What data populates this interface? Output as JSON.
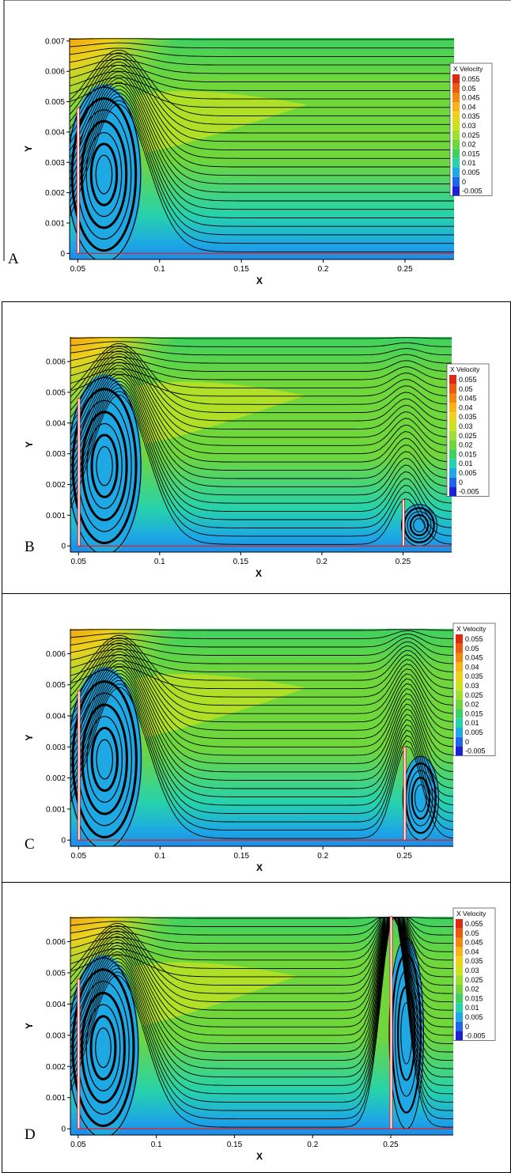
{
  "chart_data": [
    {
      "type": "heatmap",
      "panel_label": "A",
      "xlabel": "X",
      "ylabel": "Y",
      "xlim": [
        0.045,
        0.28
      ],
      "ylim": [
        -0.0002,
        0.0071
      ],
      "x_ticks": [
        "0.05",
        "0.1",
        "0.15",
        "0.2",
        "0.25"
      ],
      "y_ticks": [
        "0",
        "0.001",
        "0.002",
        "0.003",
        "0.004",
        "0.005",
        "0.006",
        "0.007"
      ],
      "obstacles": [
        {
          "x": 0.05,
          "height": 0.0048
        }
      ],
      "legend": {
        "title": "X Velocity",
        "levels": [
          "0.055",
          "0.05",
          "0.045",
          "0.04",
          "0.035",
          "0.03",
          "0.025",
          "0.02",
          "0.015",
          "0.01",
          "0.005",
          "0",
          "-0.005"
        ],
        "colors": [
          "#dd2a10",
          "#ea5a0f",
          "#f2890e",
          "#f7b418",
          "#ecd21c",
          "#cbe21e",
          "#9ee030",
          "#6fd63c",
          "#3fd160",
          "#26d2ac",
          "#1ea8e4",
          "#1f67ea",
          "#1b22d6"
        ],
        "placement": "right"
      }
    },
    {
      "type": "heatmap",
      "panel_label": "B",
      "xlabel": "X",
      "ylabel": "Y",
      "xlim": [
        0.045,
        0.28
      ],
      "ylim": [
        -0.0002,
        0.0068
      ],
      "x_ticks": [
        "0.05",
        "0.1",
        "0.15",
        "0.2",
        "0.25"
      ],
      "y_ticks": [
        "0",
        "0.001",
        "0.002",
        "0.003",
        "0.004",
        "0.005",
        "0.006"
      ],
      "obstacles": [
        {
          "x": 0.05,
          "height": 0.0048
        },
        {
          "x": 0.25,
          "height": 0.0015
        }
      ],
      "legend": {
        "title": "X Velocity",
        "levels": [
          "0.055",
          "0.05",
          "0.045",
          "0.04",
          "0.035",
          "0.03",
          "0.025",
          "0.02",
          "0.015",
          "0.01",
          "0.005",
          "0",
          "-0.005"
        ],
        "colors": [
          "#dd2a10",
          "#ea5a0f",
          "#f2890e",
          "#f7b418",
          "#ecd21c",
          "#cbe21e",
          "#9ee030",
          "#6fd63c",
          "#3fd160",
          "#26d2ac",
          "#1ea8e4",
          "#1f67ea",
          "#1b22d6"
        ],
        "placement": "right"
      }
    },
    {
      "type": "heatmap",
      "panel_label": "C",
      "xlabel": "X",
      "ylabel": "Y",
      "xlim": [
        0.045,
        0.28
      ],
      "ylim": [
        -0.0002,
        0.0068
      ],
      "x_ticks": [
        "0.05",
        "0.1",
        "0.15",
        "0.2",
        "0.25"
      ],
      "y_ticks": [
        "0",
        "0.001",
        "0.002",
        "0.003",
        "0.004",
        "0.005",
        "0.006"
      ],
      "obstacles": [
        {
          "x": 0.05,
          "height": 0.0048
        },
        {
          "x": 0.25,
          "height": 0.003
        }
      ],
      "legend": {
        "title": "X Velocity",
        "levels": [
          "0.055",
          "0.05",
          "0.045",
          "0.04",
          "0.035",
          "0.03",
          "0.025",
          "0.02",
          "0.015",
          "0.01",
          "0.005",
          "0",
          "-0.005"
        ],
        "colors": [
          "#dd2a10",
          "#ea5a0f",
          "#f2890e",
          "#f7b418",
          "#ecd21c",
          "#cbe21e",
          "#9ee030",
          "#6fd63c",
          "#3fd160",
          "#26d2ac",
          "#1ea8e4",
          "#1f67ea",
          "#1b22d6"
        ],
        "placement": "right"
      }
    },
    {
      "type": "heatmap",
      "panel_label": "D",
      "xlabel": "X",
      "ylabel": "Y",
      "xlim": [
        0.045,
        0.29
      ],
      "ylim": [
        -0.0002,
        0.0068
      ],
      "x_ticks": [
        "0.05",
        "0.1",
        "0.15",
        "0.2",
        "0.25"
      ],
      "y_ticks": [
        "0",
        "0.001",
        "0.002",
        "0.003",
        "0.004",
        "0.005",
        "0.006"
      ],
      "obstacles": [
        {
          "x": 0.05,
          "height": 0.0048
        },
        {
          "x": 0.25,
          "height": 0.0068
        }
      ],
      "legend": {
        "title": "X Velocity",
        "levels": [
          "0.055",
          "0.05",
          "0.045",
          "0.04",
          "0.035",
          "0.03",
          "0.025",
          "0.02",
          "0.015",
          "0.01",
          "0.005",
          "0",
          "-0.005"
        ],
        "colors": [
          "#dd2a10",
          "#ea5a0f",
          "#f2890e",
          "#f7b418",
          "#ecd21c",
          "#cbe21e",
          "#9ee030",
          "#6fd63c",
          "#3fd160",
          "#26d2ac",
          "#1ea8e4",
          "#1f67ea",
          "#1b22d6"
        ],
        "placement": "right"
      }
    }
  ]
}
